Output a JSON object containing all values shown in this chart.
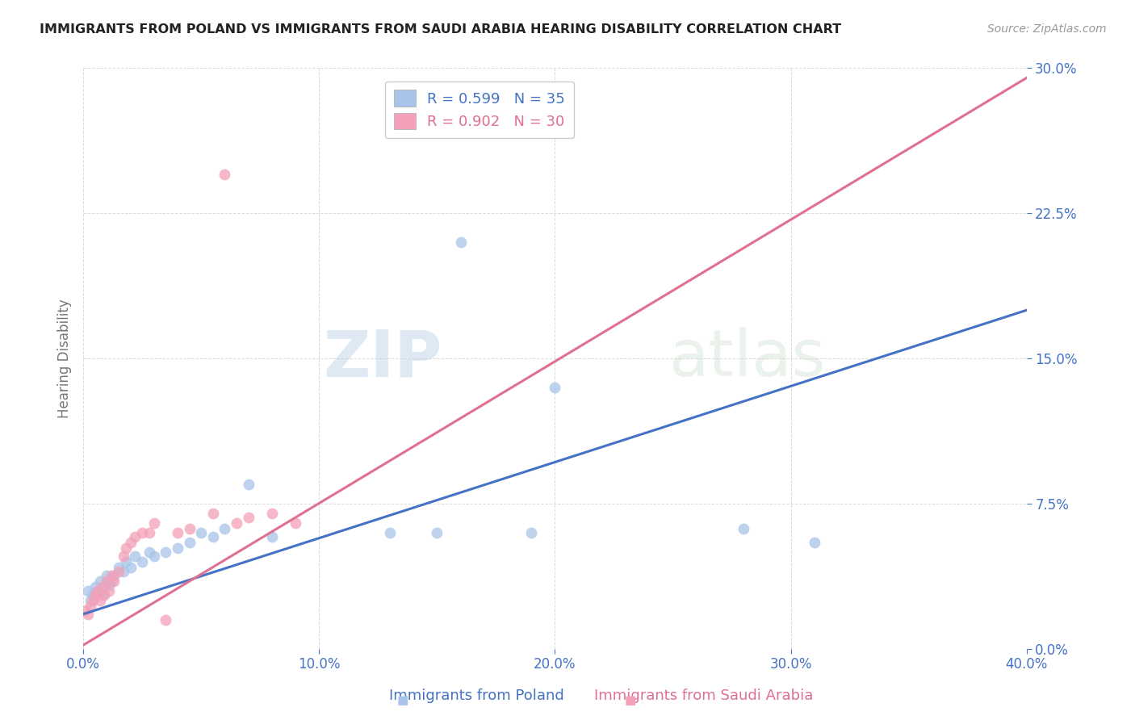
{
  "title": "IMMIGRANTS FROM POLAND VS IMMIGRANTS FROM SAUDI ARABIA HEARING DISABILITY CORRELATION CHART",
  "source": "Source: ZipAtlas.com",
  "xlabel_poland": "Immigrants from Poland",
  "xlabel_saudi": "Immigrants from Saudi Arabia",
  "ylabel": "Hearing Disability",
  "watermark_zip": "ZIP",
  "watermark_atlas": "atlas",
  "xlim": [
    0.0,
    0.4
  ],
  "ylim": [
    0.0,
    0.3
  ],
  "xticks": [
    0.0,
    0.1,
    0.2,
    0.3,
    0.4
  ],
  "yticks": [
    0.0,
    0.075,
    0.15,
    0.225,
    0.3
  ],
  "poland_color": "#a8c4e8",
  "saudi_color": "#f4a0b8",
  "poland_line_color": "#4472c4",
  "saudi_line_color": "#e07090",
  "poland_R": 0.599,
  "poland_N": 35,
  "saudi_R": 0.902,
  "saudi_N": 30,
  "poland_scatter_x": [
    0.002,
    0.003,
    0.004,
    0.005,
    0.006,
    0.007,
    0.008,
    0.009,
    0.01,
    0.011,
    0.012,
    0.013,
    0.015,
    0.017,
    0.018,
    0.02,
    0.022,
    0.025,
    0.028,
    0.03,
    0.035,
    0.04,
    0.045,
    0.05,
    0.055,
    0.06,
    0.07,
    0.08,
    0.13,
    0.15,
    0.16,
    0.19,
    0.2,
    0.28,
    0.31
  ],
  "poland_scatter_y": [
    0.03,
    0.025,
    0.028,
    0.032,
    0.03,
    0.035,
    0.028,
    0.032,
    0.038,
    0.033,
    0.035,
    0.038,
    0.042,
    0.04,
    0.045,
    0.042,
    0.048,
    0.045,
    0.05,
    0.048,
    0.05,
    0.052,
    0.055,
    0.06,
    0.058,
    0.062,
    0.085,
    0.058,
    0.06,
    0.06,
    0.21,
    0.06,
    0.135,
    0.062,
    0.055
  ],
  "saudi_scatter_x": [
    0.001,
    0.002,
    0.003,
    0.004,
    0.005,
    0.006,
    0.007,
    0.008,
    0.009,
    0.01,
    0.011,
    0.012,
    0.013,
    0.015,
    0.017,
    0.018,
    0.02,
    0.022,
    0.025,
    0.028,
    0.03,
    0.035,
    0.04,
    0.045,
    0.055,
    0.06,
    0.065,
    0.07,
    0.08,
    0.09
  ],
  "saudi_scatter_y": [
    0.02,
    0.018,
    0.022,
    0.025,
    0.028,
    0.03,
    0.025,
    0.032,
    0.028,
    0.035,
    0.03,
    0.038,
    0.035,
    0.04,
    0.048,
    0.052,
    0.055,
    0.058,
    0.06,
    0.06,
    0.065,
    0.015,
    0.06,
    0.062,
    0.07,
    0.245,
    0.065,
    0.068,
    0.07,
    0.065
  ],
  "poland_line_x": [
    0.0,
    0.4
  ],
  "poland_line_y": [
    0.018,
    0.175
  ],
  "saudi_line_x": [
    0.0,
    0.4
  ],
  "saudi_line_y": [
    0.002,
    0.295
  ],
  "grid_color": "#d8d8d8",
  "tick_color": "#4472c4",
  "ylabel_color": "#777777",
  "title_color": "#222222",
  "source_color": "#999999"
}
